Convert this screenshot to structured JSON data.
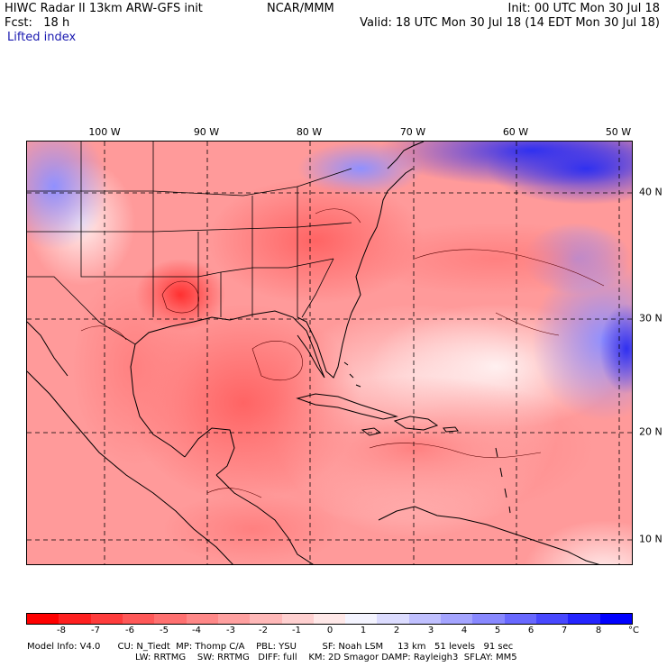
{
  "header": {
    "model_title": "HIWC Radar II 13km ARW-GFS init",
    "org": "NCAR/MMM",
    "init": "Init: 00 UTC Mon 30 Jul 18",
    "fcst": "Fcst:   18 h",
    "valid": "Valid: 18 UTC Mon 30 Jul 18 (14 EDT Mon 30 Jul 18)",
    "field": "Lifted index"
  },
  "map": {
    "lon_labels": [
      "100 W",
      "90 W",
      "80 W",
      "70 W",
      "60 W",
      "50 W"
    ],
    "lat_labels": [
      "40 N",
      "30 N",
      "20 N",
      "10 N"
    ]
  },
  "colorbar": {
    "ticks": [
      "-8",
      "-7",
      "-6",
      "-5",
      "-4",
      "-3",
      "-2",
      "-1",
      "0",
      "1",
      "2",
      "3",
      "4",
      "5",
      "6",
      "7",
      "8"
    ],
    "unit": "°C",
    "colors": [
      "#ff0000",
      "#ff2020",
      "#ff3c3c",
      "#ff5858",
      "#ff7070",
      "#ff8888",
      "#ffa0a0",
      "#ffb8b8",
      "#ffd0d0",
      "#ffe8e8",
      "#f4f4ff",
      "#dcdcff",
      "#c0c0ff",
      "#a4a4ff",
      "#8888ff",
      "#6868ff",
      "#4848ff",
      "#2424ff",
      "#0000ff"
    ]
  },
  "footer": {
    "line1": "Model Info: V4.0      CU: N_Tiedt  MP: Thomp C/A    PBL: YSU         SF: Noah LSM     13 km   51 levels   91 sec",
    "line2": "LW: RRTMG    SW: RRTMG   DIFF: full    KM: 2D Smagor DAMP: Rayleigh3  SFLAY: MM5"
  }
}
